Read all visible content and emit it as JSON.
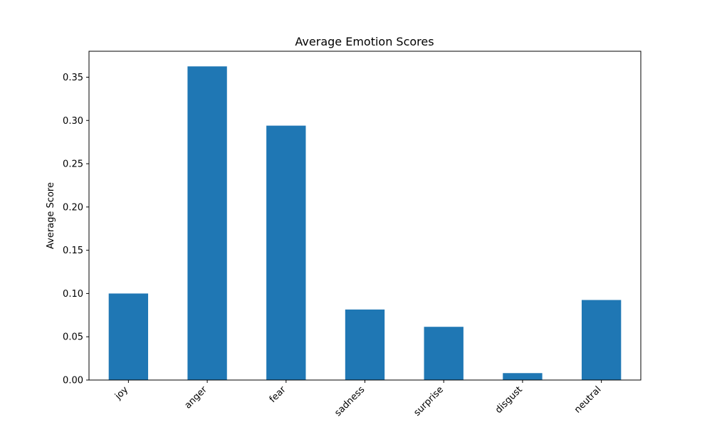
{
  "chart_data": {
    "type": "bar",
    "title": "Average Emotion Scores",
    "xlabel": "",
    "ylabel": "Average Score",
    "categories": [
      "joy",
      "anger",
      "fear",
      "sadness",
      "surprise",
      "disgust",
      "neutral"
    ],
    "values": [
      0.1,
      0.3625,
      0.294,
      0.0815,
      0.0615,
      0.008,
      0.0925
    ],
    "ylim": [
      0,
      0.38
    ],
    "yticks": [
      0.0,
      0.05,
      0.1,
      0.15,
      0.2,
      0.25,
      0.3,
      0.35
    ],
    "ytick_labels": [
      "0.00",
      "0.05",
      "0.10",
      "0.15",
      "0.20",
      "0.25",
      "0.30",
      "0.35"
    ],
    "grid": false,
    "legend": "none",
    "bar_color": "#1f77b4"
  }
}
